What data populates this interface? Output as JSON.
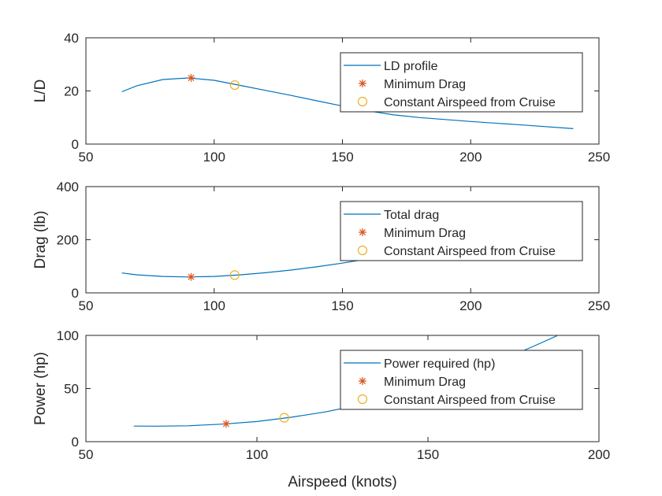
{
  "colors": {
    "line": "#0072BD",
    "min": "#D95319",
    "cruise": "#EDB120",
    "axis": "#262626"
  },
  "chart_data": [
    {
      "type": "line",
      "xlabel": "",
      "ylabel": "L/D",
      "xlim": [
        50,
        250
      ],
      "ylim": [
        0,
        40
      ],
      "xticks": [
        "50",
        "100",
        "150",
        "200",
        "250"
      ],
      "yticks": [
        "0",
        "20",
        "40"
      ],
      "legend_position": "top-right",
      "legend": [
        "LD profile",
        "Minimum Drag",
        "Constant Airspeed from Cruise"
      ],
      "series": [
        {
          "name": "LD profile",
          "x": [
            64,
            70,
            80,
            90,
            100,
            110,
            120,
            130,
            140,
            150,
            160,
            170,
            180,
            200,
            220,
            240
          ],
          "y": [
            19.7,
            22.0,
            24.3,
            24.9,
            24.0,
            22.1,
            20.2,
            18.3,
            16.3,
            14.3,
            12.5,
            11.0,
            10.0,
            8.5,
            7.2,
            5.8
          ]
        }
      ],
      "min_drag": {
        "label": "Minimum Drag",
        "x": 91,
        "y": 24.9
      },
      "cruise": {
        "label": "Constant Airspeed from Cruise",
        "x": 108,
        "y": 22.2
      }
    },
    {
      "type": "line",
      "xlabel": "",
      "ylabel": "Drag (lb)",
      "xlim": [
        50,
        250
      ],
      "ylim": [
        0,
        400
      ],
      "xticks": [
        "50",
        "100",
        "150",
        "200",
        "250"
      ],
      "yticks": [
        "0",
        "200",
        "400"
      ],
      "legend_position": "top-right",
      "legend": [
        "Total drag",
        "Minimum Drag",
        "Constant Airspeed from Cruise"
      ],
      "series": [
        {
          "name": "Total drag",
          "x": [
            64,
            70,
            80,
            90,
            100,
            110,
            120,
            130,
            140,
            150,
            160,
            170,
            180,
            200,
            220,
            240
          ],
          "y": [
            75,
            68,
            62,
            60,
            62,
            68,
            76,
            86,
            98,
            112,
            128,
            146,
            166,
            212,
            262,
            318
          ]
        }
      ],
      "min_drag": {
        "label": "Minimum Drag",
        "x": 91,
        "y": 60
      },
      "cruise": {
        "label": "Constant Airspeed from Cruise",
        "x": 108,
        "y": 67
      }
    },
    {
      "type": "line",
      "xlabel": "Airspeed (knots)",
      "ylabel": "Power (hp)",
      "xlim": [
        50,
        200
      ],
      "ylim": [
        0,
        100
      ],
      "xticks": [
        "50",
        "100",
        "150",
        "200"
      ],
      "yticks": [
        "0",
        "50",
        "100"
      ],
      "legend_position": "top-right",
      "legend": [
        "Power required (hp)",
        "Minimum Drag",
        "Constant Airspeed from Cruise"
      ],
      "series": [
        {
          "name": "Power required (hp)",
          "x": [
            64,
            70,
            80,
            90,
            100,
            110,
            120,
            130,
            140,
            150,
            160,
            170,
            180,
            188
          ],
          "y": [
            14.7,
            14.6,
            15.0,
            16.5,
            19.0,
            23.0,
            28.0,
            34.5,
            42.5,
            52.0,
            63.0,
            75.0,
            88.5,
            100
          ]
        }
      ],
      "min_drag": {
        "label": "Minimum Drag",
        "x": 91,
        "y": 16.8
      },
      "cruise": {
        "label": "Constant Airspeed from Cruise",
        "x": 108,
        "y": 22.5
      }
    }
  ]
}
